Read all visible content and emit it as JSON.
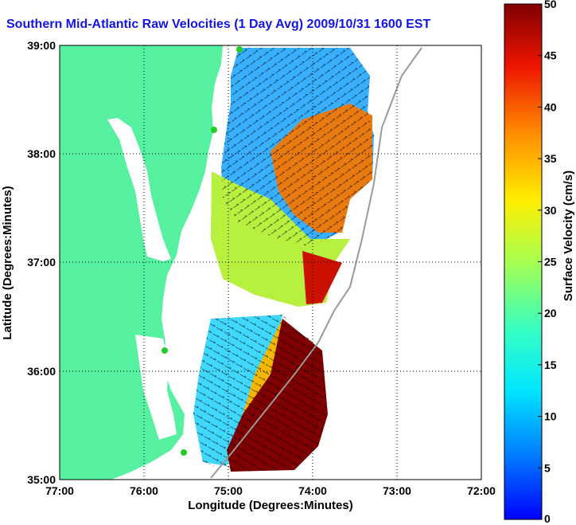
{
  "title": "Southern Mid-Atlantic Raw Velocities (1 Day Avg) 2009/10/31 1600 EST",
  "x_axis": {
    "label": "Longitude (Degrees:Minutes)",
    "ticks": [
      "77:00",
      "76:00",
      "75:00",
      "74:00",
      "73:00",
      "72:00"
    ]
  },
  "y_axis": {
    "label": "Latitude (Degrees:Minutes)",
    "ticks": [
      "39:00",
      "38:00",
      "37:00",
      "36:00",
      "35:00"
    ]
  },
  "colorbar": {
    "label": "Surface Velocity (cm/s)",
    "ticks": [
      "50",
      "45",
      "40",
      "35",
      "30",
      "25",
      "20",
      "15",
      "10",
      "5",
      "0"
    ],
    "min": 0,
    "max": 50
  },
  "colors": {
    "land": "#55f0a0",
    "title": "#1414e6",
    "shelf_contour": "#9a9a9a",
    "station_marker": "#22cc22"
  }
}
